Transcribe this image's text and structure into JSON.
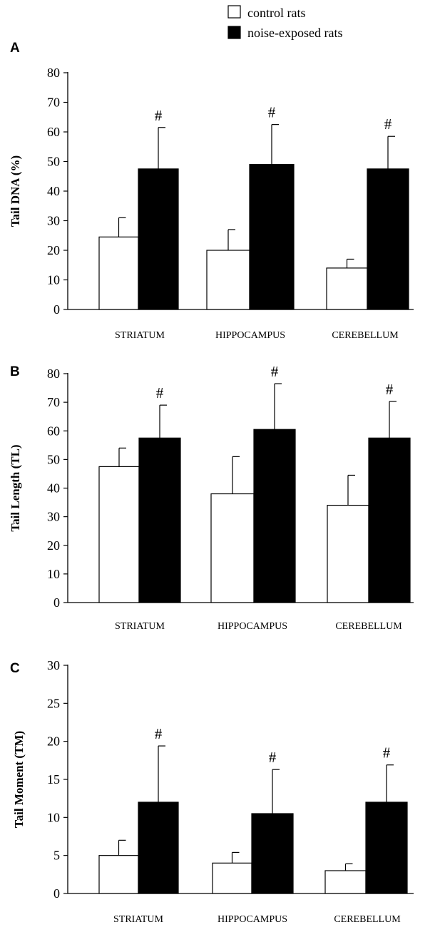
{
  "legend": {
    "entries": [
      {
        "label": "control rats",
        "color": "#ffffff"
      },
      {
        "label": "noise-exposed rats",
        "color": "#000000"
      }
    ]
  },
  "chart_data": [
    {
      "panel": "A",
      "type": "bar",
      "ylabel": "Tail DNA (%)",
      "ylim": [
        0,
        80
      ],
      "yticks": [
        0,
        10,
        20,
        30,
        40,
        50,
        60,
        70,
        80
      ],
      "categories": [
        "STRIATUM",
        "HIPPOCAMPUS",
        "CEREBELLUM"
      ],
      "series": [
        {
          "name": "control rats",
          "values": [
            24.5,
            20,
            14
          ],
          "errors": [
            6.5,
            7,
            3
          ]
        },
        {
          "name": "noise-exposed rats",
          "values": [
            47.5,
            49,
            47.5
          ],
          "errors": [
            14,
            13.5,
            11
          ]
        }
      ],
      "significance": [
        "#",
        "#",
        "#"
      ]
    },
    {
      "panel": "B",
      "type": "bar",
      "ylabel": "Tail Length (TL)",
      "ylim": [
        0,
        80
      ],
      "yticks": [
        0,
        10,
        20,
        30,
        40,
        50,
        60,
        70,
        80
      ],
      "categories": [
        "STRIATUM",
        "HIPPOCAMPUS",
        "CEREBELLUM"
      ],
      "series": [
        {
          "name": "control rats",
          "values": [
            47.5,
            38,
            34
          ],
          "errors": [
            6.5,
            13,
            10.5
          ]
        },
        {
          "name": "noise-exposed rats",
          "values": [
            57.5,
            60.5,
            57.5
          ],
          "errors": [
            11.5,
            16,
            12.8
          ]
        }
      ],
      "significance": [
        "#",
        "#",
        "#"
      ]
    },
    {
      "panel": "C",
      "type": "bar",
      "ylabel": "Tail Moment (TM)",
      "ylim": [
        0,
        30
      ],
      "yticks": [
        0,
        5,
        10,
        15,
        20,
        25,
        30
      ],
      "categories": [
        "STRIATUM",
        "HIPPOCAMPUS",
        "CEREBELLUM"
      ],
      "series": [
        {
          "name": "control rats",
          "values": [
            5,
            4,
            3
          ],
          "errors": [
            2,
            1.4,
            0.9
          ]
        },
        {
          "name": "noise-exposed rats",
          "values": [
            12,
            10.5,
            12
          ],
          "errors": [
            7.4,
            5.8,
            4.9
          ]
        }
      ],
      "significance": [
        "#",
        "#",
        "#"
      ]
    }
  ]
}
